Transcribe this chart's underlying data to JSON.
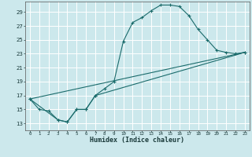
{
  "title": "",
  "xlabel": "Humidex (Indice chaleur)",
  "bg_color": "#cce8ec",
  "grid_color": "#ffffff",
  "line_color": "#1a6b6b",
  "xlim": [
    -0.5,
    23.5
  ],
  "ylim": [
    12.0,
    30.5
  ],
  "xticks": [
    0,
    1,
    2,
    3,
    4,
    5,
    6,
    7,
    8,
    9,
    10,
    11,
    12,
    13,
    14,
    15,
    16,
    17,
    18,
    19,
    20,
    21,
    22,
    23
  ],
  "yticks": [
    13,
    15,
    17,
    19,
    21,
    23,
    25,
    27,
    29
  ],
  "line1_x": [
    0,
    1,
    2,
    3,
    4,
    5,
    6,
    7,
    8,
    9,
    10,
    11,
    12,
    13,
    14,
    15,
    16,
    17,
    18,
    19,
    20,
    21,
    22,
    23
  ],
  "line1_y": [
    16.5,
    15.0,
    14.8,
    13.5,
    13.2,
    15.0,
    15.0,
    17.0,
    18.0,
    19.0,
    24.8,
    27.5,
    28.2,
    29.2,
    30.0,
    30.0,
    29.8,
    28.5,
    26.5,
    25.0,
    23.5,
    23.2,
    23.0,
    23.2
  ],
  "line2_x": [
    0,
    3,
    4,
    5,
    6,
    7,
    23
  ],
  "line2_y": [
    16.5,
    13.5,
    13.2,
    15.0,
    15.0,
    17.0,
    23.2
  ],
  "line3_x": [
    0,
    23
  ],
  "line3_y": [
    16.5,
    23.2
  ]
}
